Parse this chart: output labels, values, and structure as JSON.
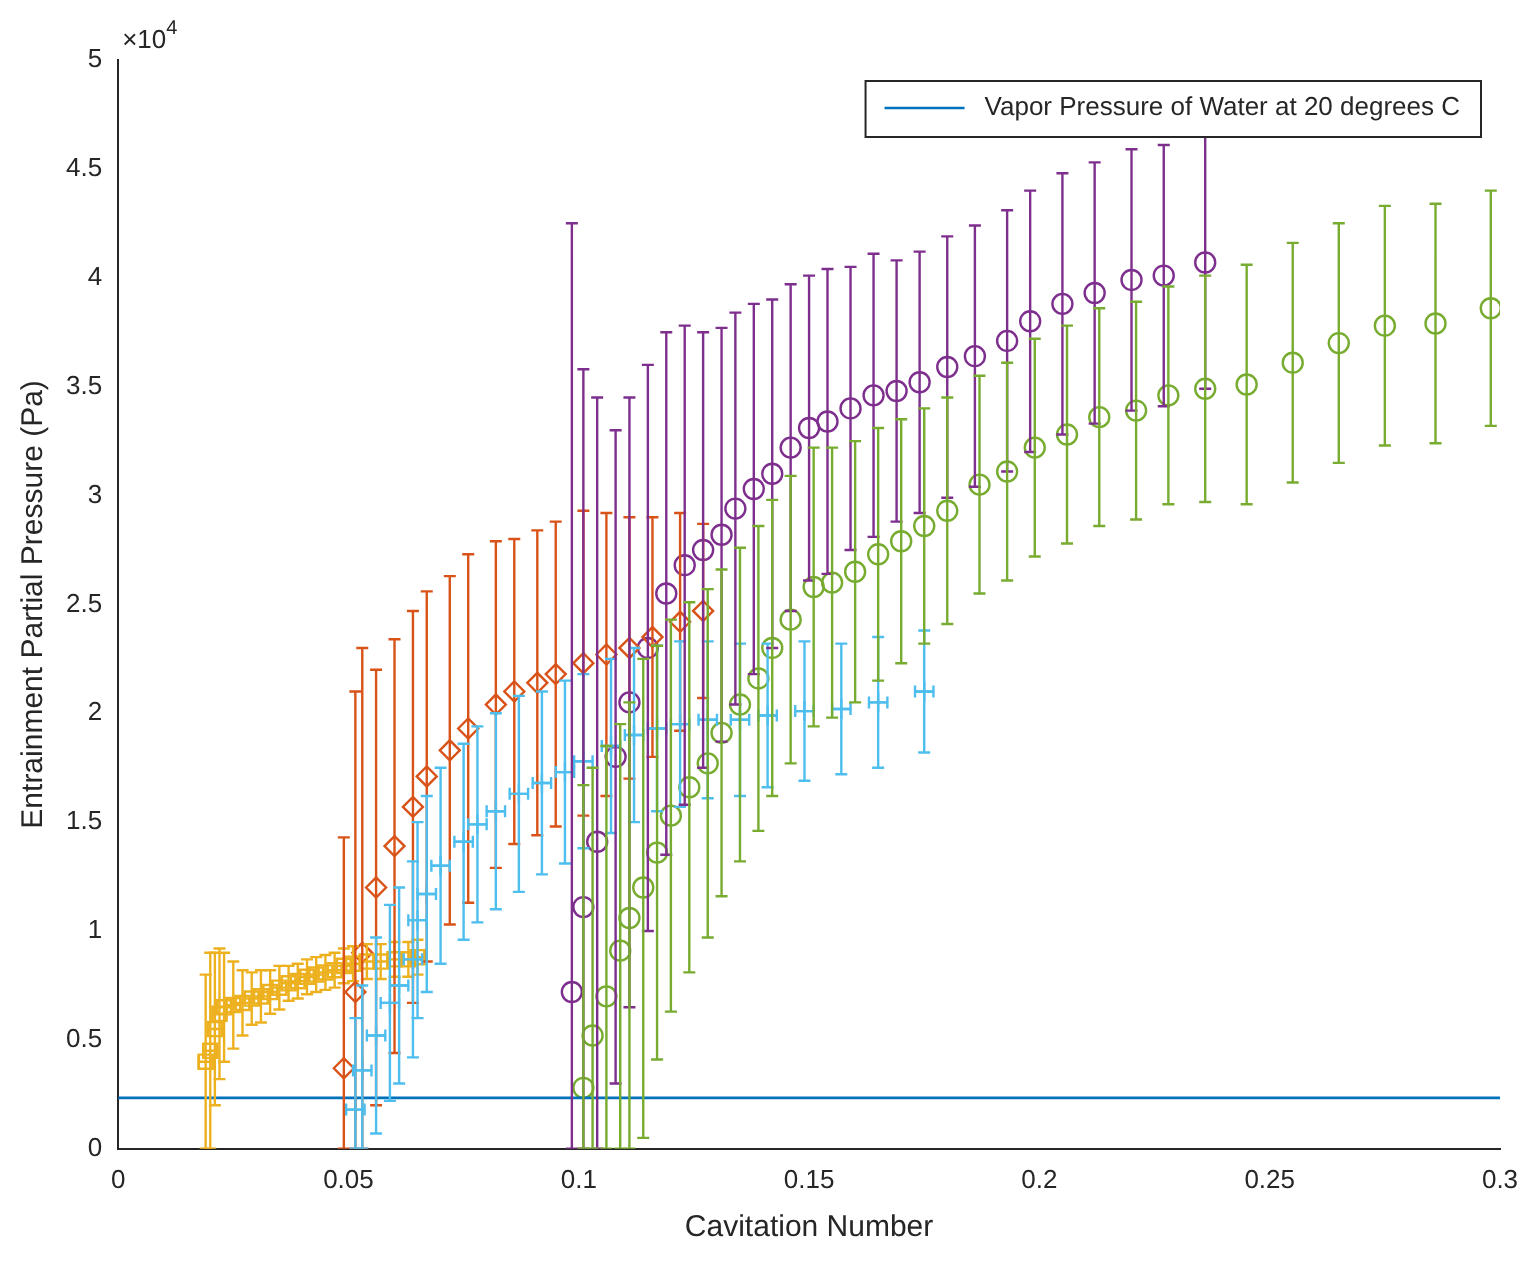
{
  "chart_data": {
    "type": "scatter",
    "xlabel": "Cavitation Number",
    "ylabel": "Entrainment Partial Pressure (Pa)",
    "annotations": [
      "×10$^{4}$"
    ],
    "xlim": [
      0,
      0.3
    ],
    "xticks": [
      0,
      0.05,
      0.1,
      0.15,
      0.2,
      0.25,
      0.3
    ],
    "ylim": [
      0,
      5
    ],
    "yticks": [
      0,
      0.5,
      1,
      1.5,
      2,
      2.5,
      3,
      3.5,
      4,
      4.5,
      5
    ],
    "grid": false,
    "legend": "top right",
    "ref_lines": [
      {
        "axis": "y",
        "value": 0.234,
        "label": "Vapor Pressure of Water at 20 degrees C",
        "color": "#0072bd"
      }
    ],
    "series": [
      {
        "color": "#edb120",
        "marker": "square",
        "x": [
          0.019,
          0.02,
          0.021,
          0.022,
          0.023,
          0.025,
          0.027,
          0.029,
          0.031,
          0.033,
          0.035,
          0.037,
          0.039,
          0.041,
          0.043,
          0.045,
          0.047,
          0.049,
          0.051,
          0.054,
          0.057,
          0.06,
          0.063,
          0.065
        ],
        "values": [
          0.4,
          0.45,
          0.55,
          0.62,
          0.65,
          0.66,
          0.67,
          0.69,
          0.7,
          0.72,
          0.74,
          0.76,
          0.77,
          0.79,
          0.8,
          0.81,
          0.82,
          0.84,
          0.85,
          0.86,
          0.86,
          0.87,
          0.87,
          0.88
        ],
        "errors": [
          0.4,
          0.45,
          0.35,
          0.3,
          0.25,
          0.2,
          0.15,
          0.12,
          0.12,
          0.1,
          0.1,
          0.08,
          0.08,
          0.08,
          0.08,
          0.08,
          0.08,
          0.08,
          0.08,
          0.08,
          0.08,
          0.08,
          0.08,
          0.08
        ],
        "xerrors": [
          0.0015,
          0.0015,
          0.0015,
          0.0015,
          0.0015,
          0.0015,
          0.0015,
          0.0015,
          0.0015,
          0.0015,
          0.0015,
          0.0015,
          0.0015,
          0.0015,
          0.0015,
          0.0015,
          0.0015,
          0.0015,
          0.0015,
          0.0015,
          0.0015,
          0.0015,
          0.0015,
          0.0015
        ]
      },
      {
        "color": "#d95319",
        "marker": "diamond",
        "x": [
          0.049,
          0.0515,
          0.053,
          0.056,
          0.06,
          0.064,
          0.067,
          0.072,
          0.076,
          0.082,
          0.086,
          0.091,
          0.095,
          0.101,
          0.106,
          0.111,
          0.116,
          0.122,
          0.127
        ],
        "values": [
          0.37,
          0.72,
          0.9,
          1.2,
          1.39,
          1.57,
          1.71,
          1.83,
          1.93,
          2.04,
          2.1,
          2.14,
          2.18,
          2.23,
          2.27,
          2.3,
          2.35,
          2.42,
          2.47
        ],
        "errors": [
          [
            0,
            1.43
          ],
          [
            0,
            2.1
          ],
          [
            0,
            2.3
          ],
          1,
          0.95,
          0.9,
          0.85,
          0.8,
          0.8,
          0.75,
          0.7,
          0.7,
          0.7,
          0.7,
          0.65,
          0.6,
          0.55,
          0.5,
          0.4
        ]
      },
      {
        "color": "#4dbeee",
        "marker": "cross",
        "x": [
          0.0515,
          0.053,
          0.056,
          0.059,
          0.061,
          0.064,
          0.065,
          0.067,
          0.07,
          0.075,
          0.078,
          0.082,
          0.087,
          0.092,
          0.097,
          0.101,
          0.107,
          0.112,
          0.117,
          0.122,
          0.128,
          0.135,
          0.141,
          0.149,
          0.157,
          0.165,
          0.175
        ],
        "values": [
          0.18,
          0.36,
          0.52,
          0.67,
          0.75,
          0.87,
          1.05,
          1.17,
          1.3,
          1.41,
          1.49,
          1.55,
          1.63,
          1.68,
          1.73,
          1.78,
          1.85,
          1.9,
          1.93,
          1.95,
          1.97,
          1.97,
          1.99,
          2.01,
          2.02,
          2.05,
          2.1
        ],
        "errors": [
          [
            0,
            0.6
          ],
          [
            0,
            0.75
          ],
          0.45,
          0.45,
          0.45,
          0.45,
          0.45,
          0.45,
          0.45,
          0.45,
          0.45,
          0.45,
          0.45,
          0.42,
          0.42,
          0.4,
          0.4,
          0.4,
          0.38,
          0.38,
          0.36,
          0.35,
          0.33,
          0.32,
          0.3,
          0.3,
          0.28
        ],
        "xerrors": [
          0.002,
          0.002,
          0.002,
          0.002,
          0.002,
          0.002,
          0.002,
          0.002,
          0.002,
          0.002,
          0.002,
          0.002,
          0.002,
          0.002,
          0.002,
          0.002,
          0.002,
          0.002,
          0.002,
          0.002,
          0.002,
          0.002,
          0.002,
          0.002,
          0.002,
          0.002,
          0.002
        ]
      },
      {
        "color": "#7e2f8e",
        "marker": "circle",
        "x": [
          0.0985,
          0.101,
          0.104,
          0.108,
          0.111,
          0.115,
          0.119,
          0.123,
          0.127,
          0.131,
          0.134,
          0.138,
          0.142,
          0.146,
          0.15,
          0.154,
          0.159,
          0.164,
          0.169,
          0.174,
          0.18,
          0.186,
          0.193,
          0.198,
          0.205,
          0.212,
          0.22,
          0.227,
          0.236
        ],
        "values": [
          0.72,
          1.11,
          1.41,
          1.8,
          2.05,
          2.3,
          2.55,
          2.68,
          2.75,
          2.82,
          2.94,
          3.03,
          3.1,
          3.22,
          3.31,
          3.34,
          3.4,
          3.46,
          3.48,
          3.52,
          3.59,
          3.64,
          3.71,
          3.8,
          3.88,
          3.93,
          3.99,
          4.01,
          4.07
        ],
        "errors": [
          [
            0,
            4.25
          ],
          [
            0,
            3.58
          ],
          [
            0,
            3.45
          ],
          1.5,
          1.4,
          1.3,
          1.2,
          1.1,
          1,
          0.95,
          0.9,
          0.85,
          0.8,
          0.75,
          0.7,
          0.7,
          0.65,
          0.65,
          0.6,
          0.6,
          0.6,
          0.6,
          0.6,
          0.6,
          0.6,
          0.6,
          0.6,
          0.6,
          0.58
        ]
      },
      {
        "color": "#77ac30",
        "marker": "circle",
        "x": [
          0.101,
          0.103,
          0.106,
          0.109,
          0.111,
          0.114,
          0.117,
          0.12,
          0.124,
          0.128,
          0.131,
          0.135,
          0.139,
          0.142,
          0.146,
          0.151,
          0.155,
          0.16,
          0.165,
          0.17,
          0.175,
          0.18,
          0.187,
          0.193,
          0.199,
          0.206,
          0.213,
          0.221,
          0.228,
          0.236,
          0.245,
          0.255,
          0.265,
          0.275,
          0.286,
          0.298
        ],
        "values": [
          0.28,
          0.52,
          0.7,
          0.91,
          1.06,
          1.2,
          1.36,
          1.53,
          1.66,
          1.77,
          1.91,
          2.04,
          2.16,
          2.3,
          2.43,
          2.58,
          2.6,
          2.65,
          2.73,
          2.79,
          2.86,
          2.93,
          3.05,
          3.11,
          3.22,
          3.28,
          3.36,
          3.39,
          3.46,
          3.49,
          3.51,
          3.61,
          3.7,
          3.78,
          3.79,
          3.86
        ],
        "errors": [
          [
            0,
            1.67
          ],
          [
            0,
            1.75
          ],
          [
            0,
            1.85
          ],
          [
            0,
            1.95
          ],
          [
            0,
            2.05
          ],
          [
            0.05,
            2.25
          ],
          0.95,
          0.9,
          0.85,
          0.8,
          0.75,
          0.72,
          0.7,
          0.68,
          0.66,
          0.64,
          0.62,
          0.6,
          0.58,
          0.56,
          0.54,
          0.52,
          0.5,
          0.5,
          0.5,
          0.5,
          0.5,
          0.5,
          0.5,
          0.52,
          0.55,
          0.55,
          0.55,
          0.55,
          0.55,
          0.54
        ]
      }
    ]
  }
}
